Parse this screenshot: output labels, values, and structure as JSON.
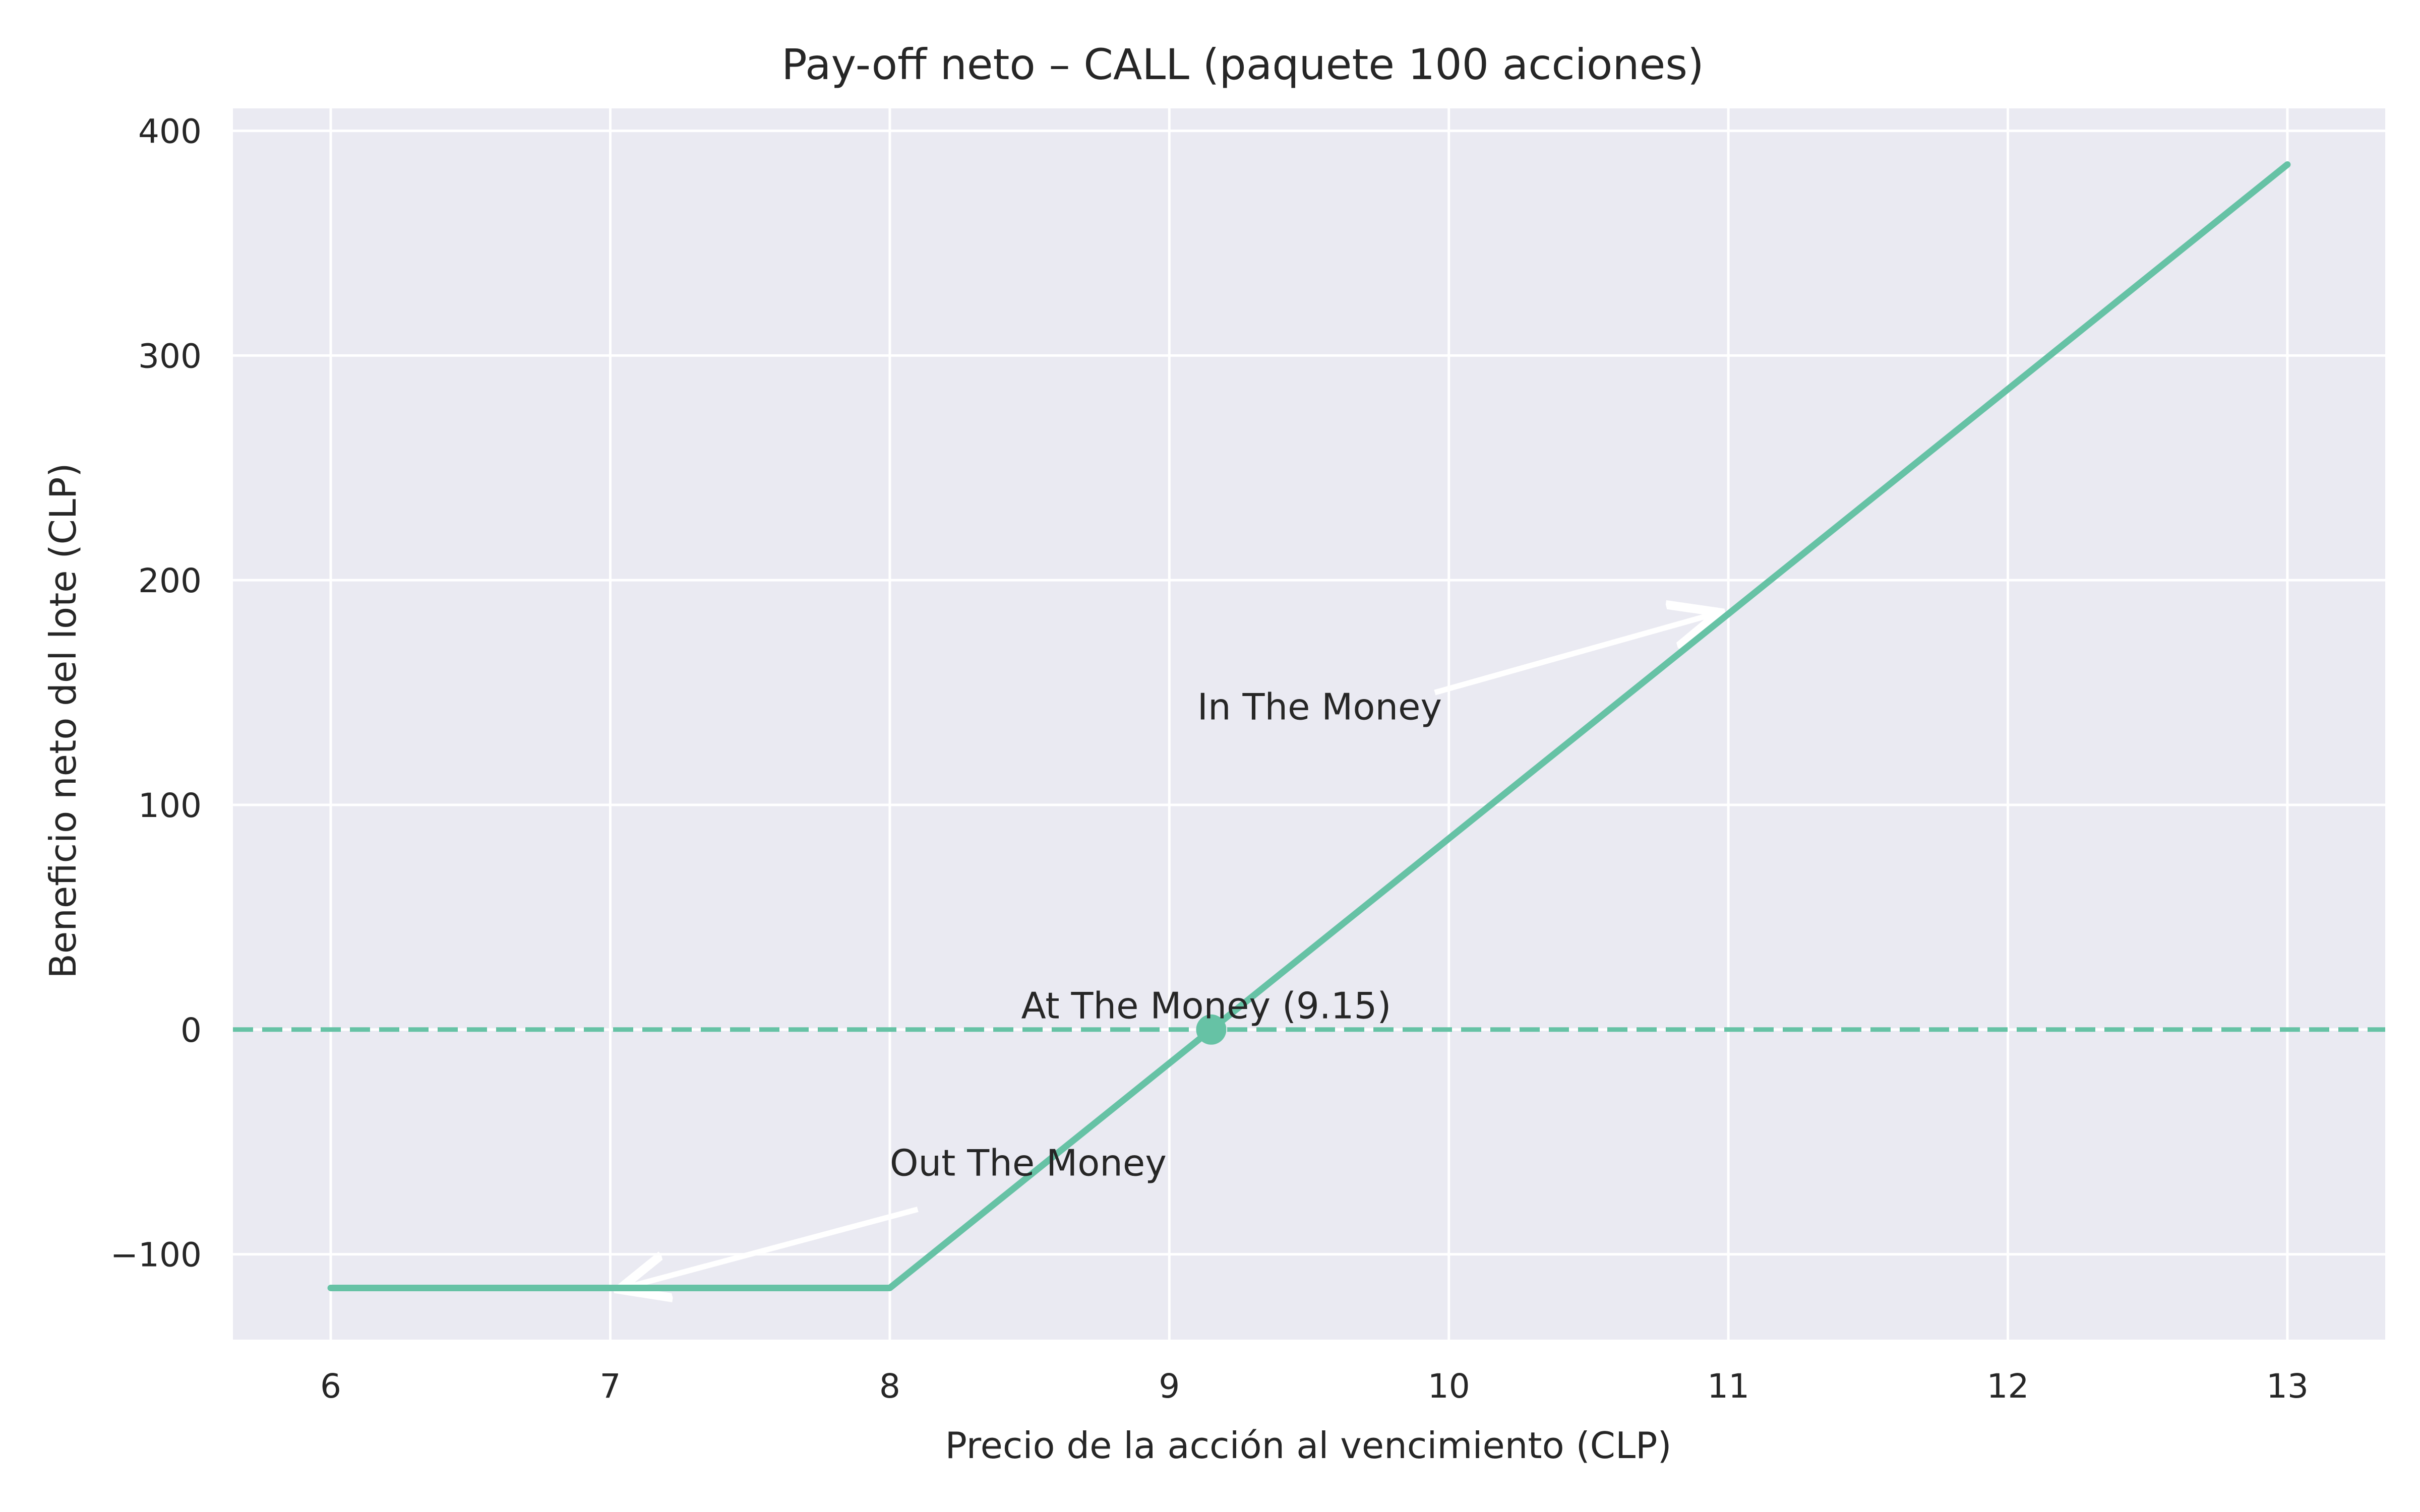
{
  "chart_data": {
    "type": "line",
    "title": "Pay-off neto – CALL (paquete 100 acciones)",
    "xlabel": "Precio de la acción al vencimiento (CLP)",
    "ylabel": "Beneficio neto del lote (CLP)",
    "xlim": [
      5.65,
      13.35
    ],
    "ylim": [
      -138,
      410
    ],
    "xticks": [
      6,
      7,
      8,
      9,
      10,
      11,
      12,
      13
    ],
    "yticks": [
      -100,
      0,
      100,
      200,
      300,
      400
    ],
    "xtick_labels": [
      "6",
      "7",
      "8",
      "9",
      "10",
      "11",
      "12",
      "13"
    ],
    "ytick_labels": [
      "−100",
      "0",
      "100",
      "200",
      "300",
      "400"
    ],
    "grid": true,
    "series": [
      {
        "x": [
          6,
          8,
          13
        ],
        "y": [
          -115,
          -115,
          385
        ],
        "color": "#66c2a5"
      }
    ],
    "zero_line": {
      "y": 0,
      "style": "dashed",
      "color": "#66c2a5"
    },
    "breakeven_point": {
      "x": 9.15,
      "y": 0,
      "color": "#66c2a5"
    },
    "annotations": [
      {
        "text": "In The Money",
        "text_x": 9.1,
        "text_y": 138,
        "arrow_from": [
          9.95,
          150
        ],
        "arrow_to": [
          10.95,
          185
        ]
      },
      {
        "text": "At The Money (9.15)",
        "text_x": 8.47,
        "text_y": 5
      },
      {
        "text": "Out The Money",
        "text_x": 8.0,
        "text_y": -65,
        "arrow_from": [
          8.1,
          -80
        ],
        "arrow_to": [
          7.05,
          -115
        ]
      }
    ]
  }
}
